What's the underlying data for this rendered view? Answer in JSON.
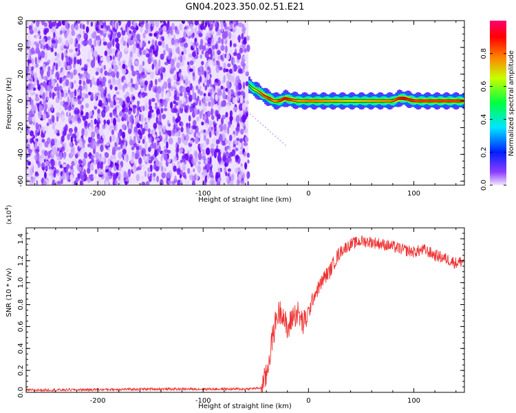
{
  "title": "GN04.2023.350.02.51.E21",
  "chart_data": [
    {
      "type": "heatmap",
      "title": "GN04.2023.350.02.51.E21",
      "xlabel": "Height of straight line (km)",
      "ylabel": "Frequency (Hz)",
      "xlim": [
        -268,
        148
      ],
      "ylim": [
        -63,
        60
      ],
      "x_ticks": [
        "-200",
        "-100",
        "0",
        "100"
      ],
      "y_ticks": [
        "-60",
        "-40",
        "-20",
        "0",
        "20",
        "40",
        "60"
      ],
      "colorbar": {
        "label": "Normalized spectral amplitude",
        "range": [
          0,
          1
        ],
        "ticks": [
          "0.0",
          "0.2",
          "0.4",
          "0.6",
          "0.8"
        ],
        "colormap": "rainbow (violet low, red/magenta high)"
      },
      "noise_region": {
        "x_range": [
          -268,
          -57
        ],
        "freq_range": [
          -63,
          60
        ],
        "color": "#6a00ff"
      },
      "signal_track": {
        "x": [
          -57,
          -53,
          -48,
          -43,
          -38,
          -33,
          -28,
          -23,
          -18,
          -10,
          0,
          20,
          40,
          60,
          80,
          85,
          90,
          100,
          120,
          148
        ],
        "freq": [
          12,
          9,
          7,
          4,
          2,
          0,
          0,
          2,
          1,
          0,
          0,
          0,
          0,
          0,
          0,
          2,
          2,
          0,
          0,
          0
        ],
        "color_scale": [
          0.6,
          0.7,
          0.8,
          0.9,
          0.9,
          0.8,
          0.9,
          0.95,
          0.9,
          0.8,
          0.85,
          0.8,
          0.75,
          0.8,
          0.85,
          0.95,
          0.95,
          0.9,
          0.9,
          0.9
        ]
      },
      "faint_trail": {
        "x": [
          -55,
          -22
        ],
        "freq": [
          -10,
          -33
        ]
      }
    },
    {
      "type": "line",
      "xlabel": "Height of straight line (km)",
      "ylabel": "SNR (10 * v/v)",
      "multiplier_label": "(x10^4)",
      "xlim": [
        -268,
        148
      ],
      "ylim": [
        0,
        1.5
      ],
      "x_ticks": [
        "-200",
        "-100",
        "0",
        "100"
      ],
      "y_ticks": [
        "0.0",
        "0.2",
        "0.4",
        "0.6",
        "0.8",
        "1.0",
        "1.2",
        "1.4"
      ],
      "series": [
        {
          "color": "#ee3333",
          "x": [
            -268,
            -200,
            -150,
            -100,
            -60,
            -45,
            -40,
            -35,
            -30,
            -25,
            -20,
            -15,
            -10,
            -5,
            0,
            5,
            10,
            15,
            20,
            25,
            30,
            35,
            40,
            50,
            60,
            70,
            80,
            90,
            100,
            110,
            120,
            130,
            140,
            148
          ],
          "values": [
            0.02,
            0.025,
            0.03,
            0.03,
            0.03,
            0.04,
            0.15,
            0.45,
            0.7,
            0.75,
            0.55,
            0.7,
            0.72,
            0.62,
            0.72,
            0.88,
            0.96,
            1.05,
            1.1,
            1.2,
            1.28,
            1.32,
            1.35,
            1.38,
            1.37,
            1.35,
            1.33,
            1.3,
            1.28,
            1.3,
            1.25,
            1.22,
            1.18,
            1.2
          ]
        }
      ]
    }
  ]
}
